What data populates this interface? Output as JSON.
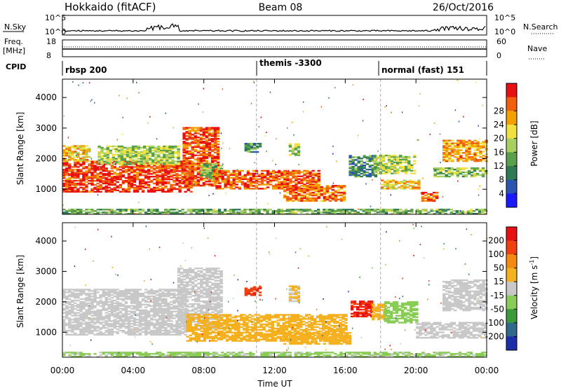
{
  "header": {
    "site": "Hokkaido (fitACF)",
    "beam": "Beam 08",
    "date": "26/Oct/2016"
  },
  "strip_panels": {
    "nsky_label": "N.Sky",
    "nsky_ticks": [
      "10^5",
      "10^0"
    ],
    "nsearch_label": "N.Search",
    "nsearch_ticks": [
      "10^5",
      "10^0"
    ],
    "freq_label": "Freq.",
    "freq_unit": "[MHz]",
    "freq_ticks": [
      "18",
      "8"
    ],
    "nave_label": "Nave",
    "nave_ticks": [
      "60",
      "0"
    ],
    "cpid_label": "CPID",
    "cpid_segments": [
      {
        "start": "00:00",
        "label": "rbsp 200"
      },
      {
        "start": "10:40",
        "label": "themis -3300"
      },
      {
        "start": "18:00",
        "label": "normal (fast) 151"
      }
    ]
  },
  "chart_data": [
    {
      "type": "heatmap",
      "panel": "power",
      "ylabel": "Slant Range [km]",
      "ylim": [
        180,
        4600
      ],
      "yticks": [
        1000,
        2000,
        3000,
        4000
      ],
      "x_ticks": [
        "00:00",
        "04:00",
        "08:00",
        "12:00",
        "16:00",
        "20:00",
        "00:00"
      ],
      "x_range_hours": [
        0,
        24
      ],
      "colorbar": {
        "label": "Power [dB]",
        "ticks": [
          "4",
          "8",
          "12",
          "16",
          "20",
          "24",
          "28"
        ],
        "range": [
          0,
          30
        ],
        "colors": [
          "#1a1aff",
          "#2a55b0",
          "#2f7a55",
          "#5aa04a",
          "#a8d060",
          "#f0e040",
          "#f5a000",
          "#f06010",
          "#e81010"
        ]
      },
      "regions": [
        {
          "t0": 0.0,
          "t1": 7.3,
          "r0": 900,
          "r1": 1900,
          "value": 27
        },
        {
          "t0": 0.0,
          "t1": 1.5,
          "r0": 1900,
          "r1": 2400,
          "value": 20
        },
        {
          "t0": 2.0,
          "t1": 6.5,
          "r0": 1800,
          "r1": 2400,
          "value": 15
        },
        {
          "t0": 6.8,
          "t1": 8.8,
          "r0": 1100,
          "r1": 3000,
          "value": 26
        },
        {
          "t0": 7.8,
          "t1": 9.0,
          "r0": 1300,
          "r1": 1800,
          "value": 14
        },
        {
          "t0": 8.5,
          "t1": 14.5,
          "r0": 1000,
          "r1": 1600,
          "value": 25
        },
        {
          "t0": 12.5,
          "t1": 16.0,
          "r0": 600,
          "r1": 1100,
          "value": 24
        },
        {
          "t0": 10.3,
          "t1": 11.2,
          "r0": 2200,
          "r1": 2500,
          "value": 10
        },
        {
          "t0": 12.8,
          "t1": 13.4,
          "r0": 2100,
          "r1": 2500,
          "value": 14
        },
        {
          "t0": 16.2,
          "t1": 17.8,
          "r0": 1400,
          "r1": 2100,
          "value": 9
        },
        {
          "t0": 17.6,
          "t1": 20.0,
          "r0": 1500,
          "r1": 2100,
          "value": 15
        },
        {
          "t0": 18.0,
          "t1": 20.2,
          "r0": 1000,
          "r1": 1300,
          "value": 20
        },
        {
          "t0": 21.5,
          "t1": 24.0,
          "r0": 1900,
          "r1": 2600,
          "value": 22
        },
        {
          "t0": 21.0,
          "t1": 24.0,
          "r0": 1400,
          "r1": 1700,
          "value": 14
        },
        {
          "t0": 20.3,
          "t1": 21.2,
          "r0": 600,
          "r1": 900,
          "value": 26
        },
        {
          "t0": 0.0,
          "t1": 24.0,
          "r0": 180,
          "r1": 350,
          "value": 12
        }
      ]
    },
    {
      "type": "heatmap",
      "panel": "velocity",
      "ylabel": "Slant Range [km]",
      "ylim": [
        180,
        4600
      ],
      "yticks": [
        1000,
        2000,
        3000,
        4000
      ],
      "x_ticks": [
        "00:00",
        "04:00",
        "08:00",
        "12:00",
        "16:00",
        "20:00",
        "00:00"
      ],
      "x_range_hours": [
        0,
        24
      ],
      "xlabel": "Time UT",
      "colorbar": {
        "label": "Velocity [m s^-1]",
        "ticks": [
          "200",
          "100",
          "50",
          "15",
          "-15",
          "-50",
          "-100",
          "-200"
        ],
        "range": [
          -250,
          250
        ],
        "colors": [
          "#1a2ea8",
          "#2e6a8a",
          "#3a9a3a",
          "#88cc55",
          "#c8c8c8",
          "#f5b020",
          "#f58a10",
          "#f04010",
          "#e81010"
        ]
      },
      "regions": [
        {
          "t0": 0.0,
          "t1": 7.0,
          "r0": 900,
          "r1": 2400,
          "value": 0
        },
        {
          "t0": 6.5,
          "t1": 9.0,
          "r0": 1100,
          "r1": 3100,
          "value": 0
        },
        {
          "t0": 7.0,
          "t1": 16.0,
          "r0": 700,
          "r1": 1600,
          "value": 60
        },
        {
          "t0": 12.5,
          "t1": 16.2,
          "r0": 600,
          "r1": 1000,
          "value": 60
        },
        {
          "t0": 10.3,
          "t1": 11.2,
          "r0": 2200,
          "r1": 2500,
          "value": 180
        },
        {
          "t0": 12.8,
          "t1": 13.4,
          "r0": 2000,
          "r1": 2500,
          "value": 30
        },
        {
          "t0": 16.3,
          "t1": 17.5,
          "r0": 1500,
          "r1": 2000,
          "value": 200
        },
        {
          "t0": 17.5,
          "t1": 18.3,
          "r0": 1400,
          "r1": 1900,
          "value": 60
        },
        {
          "t0": 18.2,
          "t1": 20.0,
          "r0": 1300,
          "r1": 2000,
          "value": -60
        },
        {
          "t0": 21.5,
          "t1": 24.0,
          "r0": 1700,
          "r1": 2700,
          "value": 0
        },
        {
          "t0": 20.0,
          "t1": 24.0,
          "r0": 800,
          "r1": 1300,
          "value": 0
        },
        {
          "t0": 0.0,
          "t1": 24.0,
          "r0": 180,
          "r1": 350,
          "value": -40
        }
      ]
    }
  ]
}
